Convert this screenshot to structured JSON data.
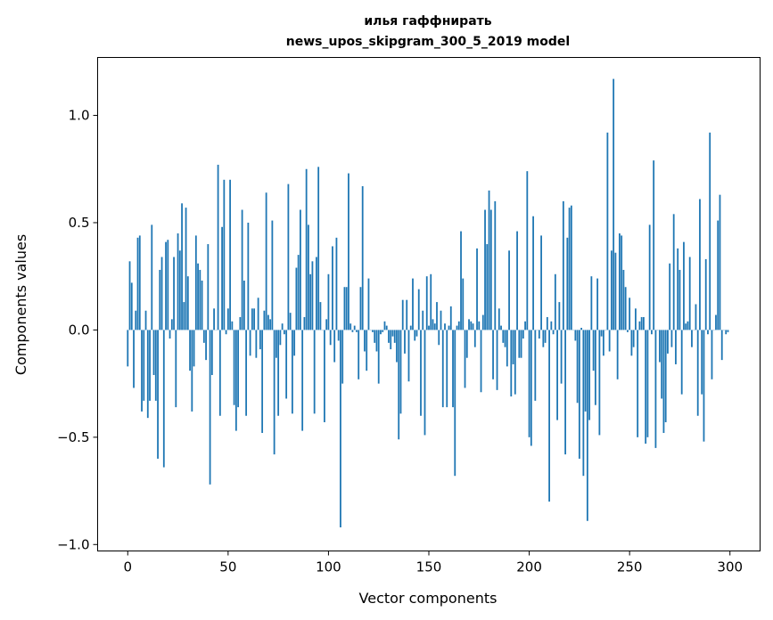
{
  "chart_data": {
    "type": "bar",
    "title": [
      "илья гаффнирать",
      "news_upos_skipgram_300_5_2019 model"
    ],
    "xlabel": "Vector components",
    "ylabel": "Components values",
    "xlim": [
      -15,
      315
    ],
    "ylim": [
      -1.03,
      1.27
    ],
    "bar_color": "#1f77b4",
    "xticks": [
      0,
      50,
      100,
      150,
      200,
      250,
      300
    ],
    "xtick_labels": [
      "0",
      "50",
      "100",
      "150",
      "200",
      "250",
      "300"
    ],
    "yticks": [
      -1.0,
      -0.5,
      0.0,
      0.5,
      1.0
    ],
    "ytick_labels": [
      "−1.0",
      "−0.5",
      "0.0",
      "0.5",
      "1.0"
    ],
    "values": [
      -0.17,
      0.32,
      0.22,
      -0.27,
      0.09,
      0.43,
      0.44,
      -0.38,
      -0.33,
      0.09,
      -0.41,
      -0.33,
      0.49,
      -0.21,
      -0.33,
      -0.6,
      0.28,
      0.34,
      -0.64,
      0.41,
      0.42,
      -0.04,
      0.05,
      0.34,
      -0.36,
      0.45,
      0.37,
      0.59,
      0.13,
      0.57,
      0.25,
      -0.19,
      -0.38,
      -0.17,
      0.44,
      0.31,
      0.28,
      0.23,
      -0.06,
      -0.14,
      0.4,
      -0.72,
      -0.21,
      0.1,
      0.0,
      0.77,
      -0.4,
      0.48,
      0.7,
      -0.02,
      0.1,
      0.7,
      0.04,
      -0.35,
      -0.47,
      -0.36,
      0.06,
      0.56,
      0.23,
      -0.4,
      0.5,
      -0.12,
      0.1,
      0.1,
      -0.13,
      0.15,
      -0.09,
      -0.48,
      0.09,
      0.64,
      0.07,
      0.05,
      0.51,
      -0.58,
      -0.13,
      -0.4,
      -0.07,
      0.03,
      -0.02,
      -0.32,
      0.68,
      0.08,
      -0.39,
      -0.12,
      0.29,
      0.35,
      0.56,
      -0.47,
      0.06,
      0.75,
      0.49,
      0.26,
      0.32,
      -0.39,
      0.34,
      0.76,
      0.13,
      0.0,
      -0.43,
      0.05,
      0.26,
      -0.07,
      0.39,
      -0.15,
      0.43,
      -0.05,
      -0.92,
      -0.25,
      0.2,
      0.2,
      0.73,
      0.03,
      -0.01,
      0.02,
      -0.01,
      -0.23,
      0.2,
      0.67,
      -0.1,
      -0.19,
      0.24,
      0.0,
      -0.01,
      -0.06,
      -0.1,
      -0.25,
      -0.02,
      -0.01,
      0.04,
      0.02,
      -0.06,
      -0.09,
      -0.03,
      -0.06,
      -0.15,
      -0.51,
      -0.39,
      0.14,
      -0.11,
      0.14,
      -0.24,
      0.02,
      0.24,
      -0.05,
      -0.03,
      0.19,
      -0.4,
      0.09,
      -0.49,
      0.25,
      0.02,
      0.26,
      0.05,
      0.03,
      0.13,
      -0.07,
      0.09,
      -0.36,
      0.03,
      -0.36,
      0.02,
      0.11,
      -0.36,
      -0.68,
      0.02,
      0.04,
      0.46,
      0.24,
      -0.27,
      -0.13,
      0.05,
      0.04,
      0.03,
      -0.08,
      0.38,
      0.04,
      -0.29,
      0.07,
      0.56,
      0.4,
      0.65,
      0.56,
      -0.23,
      0.6,
      -0.28,
      0.1,
      0.02,
      -0.06,
      -0.08,
      -0.17,
      0.37,
      -0.31,
      -0.16,
      -0.3,
      0.46,
      -0.13,
      -0.13,
      -0.04,
      0.04,
      0.74,
      -0.5,
      -0.54,
      0.53,
      -0.33,
      0.0,
      -0.04,
      0.44,
      -0.08,
      -0.06,
      0.06,
      -0.8,
      0.04,
      -0.02,
      0.26,
      -0.42,
      0.13,
      -0.25,
      0.6,
      -0.58,
      0.43,
      0.57,
      0.58,
      0.0,
      -0.05,
      -0.34,
      -0.6,
      0.01,
      -0.68,
      -0.38,
      -0.89,
      -0.42,
      0.25,
      -0.19,
      -0.35,
      0.24,
      -0.49,
      -0.03,
      -0.12,
      0.0,
      0.92,
      -0.1,
      0.37,
      1.17,
      0.36,
      -0.23,
      0.45,
      0.44,
      0.28,
      0.2,
      -0.01,
      0.15,
      -0.12,
      -0.08,
      0.1,
      -0.5,
      0.04,
      0.06,
      0.06,
      -0.53,
      -0.5,
      0.49,
      -0.02,
      0.79,
      -0.55,
      0.0,
      -0.15,
      -0.32,
      -0.48,
      -0.43,
      -0.11,
      0.31,
      -0.08,
      0.54,
      -0.16,
      0.38,
      0.28,
      -0.3,
      0.41,
      0.03,
      0.04,
      0.34,
      -0.08,
      0.0,
      0.12,
      -0.4,
      0.61,
      -0.3,
      -0.52,
      0.33,
      -0.02,
      0.92,
      -0.23,
      0.0,
      0.07,
      0.51,
      0.63,
      -0.14,
      0.0,
      -0.02,
      -0.01
    ]
  }
}
